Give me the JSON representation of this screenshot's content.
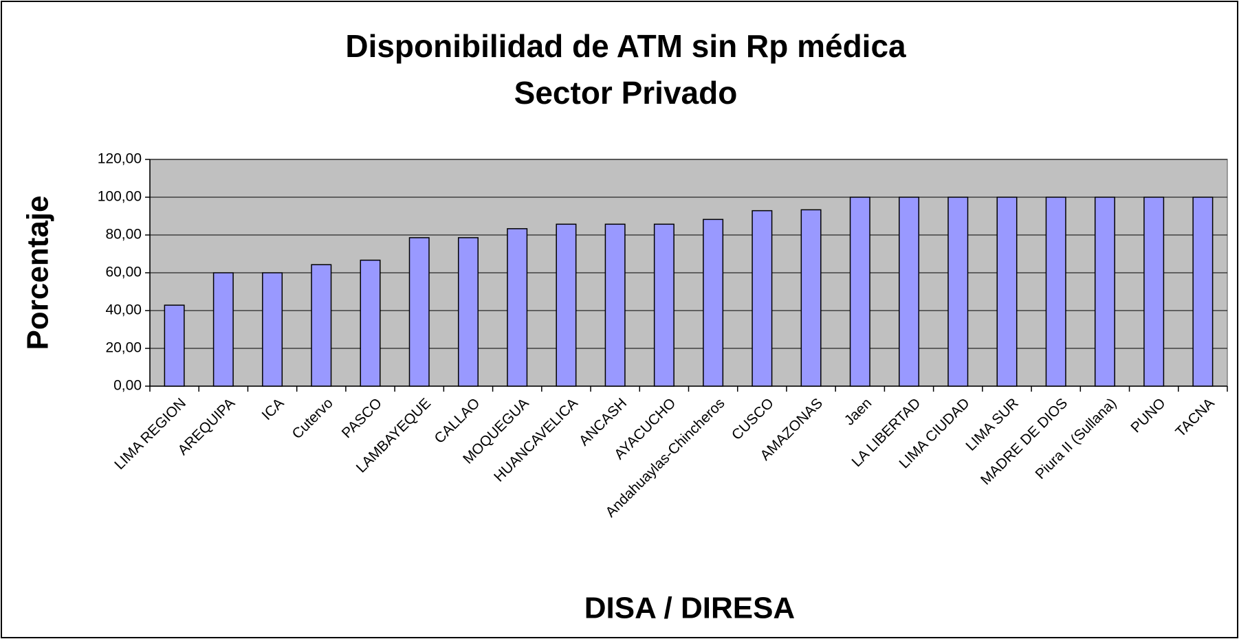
{
  "chart_data": {
    "type": "bar",
    "title": "Disponibilidad de ATM sin Rp médica",
    "subtitle": "Sector Privado",
    "y_label": "Porcentaje",
    "x_label": "DISA / DIRESA",
    "categories": [
      "LIMA REGION",
      "AREQUIPA",
      "ICA",
      "Cutervo",
      "PASCO",
      "LAMBAYEQUE",
      "CALLAO",
      "MOQUEGUA",
      "HUANCAVELICA",
      "ANCASH",
      "AYACUCHO",
      "Andahuaylas-Chincheros",
      "CUSCO",
      "AMAZONAS",
      "Jaen",
      "LA LIBERTAD",
      "LIMA CIUDAD",
      "LIMA SUR",
      "MADRE DE DIOS",
      "Piura II (Sullana)",
      "PUNO",
      "TACNA"
    ],
    "values": [
      42.86,
      60,
      60,
      64.29,
      66.67,
      78.57,
      78.57,
      83.33,
      85.71,
      85.71,
      85.71,
      88.24,
      92.86,
      93.33,
      100,
      100,
      100,
      100,
      100,
      100,
      100,
      100
    ],
    "color": "#9999ff",
    "ylim": [
      0,
      120
    ],
    "yticks": [
      {
        "value": 0,
        "label": "0,00"
      },
      {
        "value": 20,
        "label": "20,00"
      },
      {
        "value": 40,
        "label": "40,00"
      },
      {
        "value": 60,
        "label": "60,00"
      },
      {
        "value": 80,
        "label": "80,00"
      },
      {
        "value": 100,
        "label": "100,00"
      },
      {
        "value": 120,
        "label": "120,00"
      }
    ],
    "grid": true
  }
}
